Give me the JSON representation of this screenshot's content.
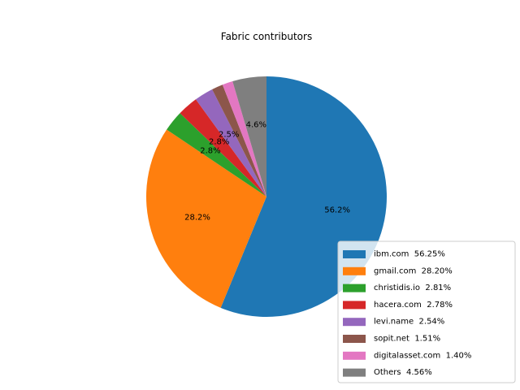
{
  "chart_data": {
    "type": "pie",
    "title": "Fabric contributors",
    "start_angle_deg": 90,
    "direction": "clockwise",
    "legend_position": "lower-right",
    "slices": [
      {
        "label": "ibm.com",
        "value": 56.25,
        "pct_label": "56.2%",
        "legend": "ibm.com  56.25%",
        "color": "#1f77b4"
      },
      {
        "label": "gmail.com",
        "value": 28.2,
        "pct_label": "28.2%",
        "legend": "gmail.com  28.20%",
        "color": "#ff7f0e"
      },
      {
        "label": "christidis.io",
        "value": 2.81,
        "pct_label": "2.8%",
        "legend": "christidis.io  2.81%",
        "color": "#2ca02c"
      },
      {
        "label": "hacera.com",
        "value": 2.78,
        "pct_label": "2.8%",
        "legend": "hacera.com  2.78%",
        "color": "#d62728"
      },
      {
        "label": "levi.name",
        "value": 2.54,
        "pct_label": "2.5%",
        "legend": "levi.name  2.54%",
        "color": "#9467bd"
      },
      {
        "label": "sopit.net",
        "value": 1.51,
        "pct_label": "",
        "legend": "sopit.net  1.51%",
        "color": "#8c564b"
      },
      {
        "label": "digitalasset.com",
        "value": 1.4,
        "pct_label": "",
        "legend": "digitalasset.com  1.40%",
        "color": "#e377c2"
      },
      {
        "label": "Others",
        "value": 4.56,
        "pct_label": "4.6%",
        "legend": "Others  4.56%",
        "color": "#7f7f7f"
      }
    ]
  }
}
